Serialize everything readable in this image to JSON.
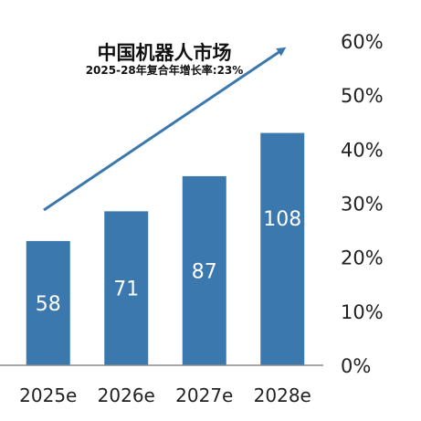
{
  "chart_data": {
    "type": "bar",
    "title": "中国机器人市场",
    "subtitle": "2025-28年复合年增长率:23%",
    "categories": [
      "2025e",
      "2026e",
      "2027e",
      "2028e"
    ],
    "values": [
      58,
      71,
      87,
      108
    ],
    "data_labels": [
      "58",
      "71",
      "87",
      "108"
    ],
    "y_axis": {
      "position": "right",
      "ticks": [
        "0%",
        "10%",
        "20%",
        "30%",
        "40%",
        "50%",
        "60%"
      ],
      "tick_values": [
        0,
        10,
        20,
        30,
        40,
        50,
        60
      ],
      "range": [
        0,
        60
      ]
    },
    "bar_heights_percent": [
      23,
      28.5,
      35,
      43
    ],
    "bar_color": "#3a78ad",
    "arrow_color": "#3a78ad",
    "trend_arrow": true,
    "grid": false
  }
}
